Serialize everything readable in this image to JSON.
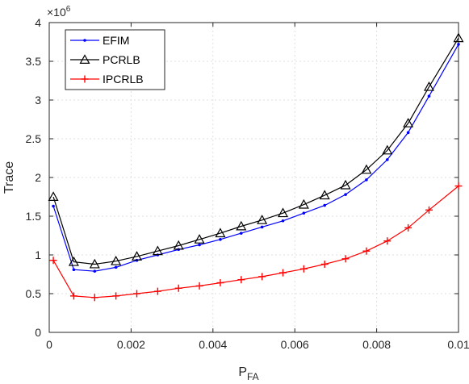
{
  "chart_data": {
    "type": "line",
    "title": "",
    "xlabel": "P",
    "xlabel_sub": "FA",
    "ylabel": "Trace",
    "y_multiplier_base": "×10",
    "y_multiplier_exp": "6",
    "xlim": [
      0,
      0.01
    ],
    "ylim": [
      0,
      4
    ],
    "x_ticks": [
      0,
      0.002,
      0.004,
      0.006,
      0.008,
      0.01
    ],
    "x_tick_labels": [
      "0",
      "0.002",
      "0.004",
      "0.006",
      "0.008",
      "0.01"
    ],
    "y_ticks": [
      0,
      0.5,
      1,
      1.5,
      2,
      2.5,
      3,
      3.5,
      4
    ],
    "y_tick_labels": [
      "0",
      "0.5",
      "1",
      "1.5",
      "2",
      "2.5",
      "3",
      "3.5",
      "4"
    ],
    "grid": true,
    "legend_position": "top-left",
    "x": [
      0.0001,
      0.0006,
      0.00111,
      0.00163,
      0.00214,
      0.00265,
      0.00316,
      0.00367,
      0.00418,
      0.00469,
      0.0052,
      0.00571,
      0.00622,
      0.00673,
      0.00724,
      0.00775,
      0.00826,
      0.00877,
      0.00928,
      0.01
    ],
    "series": [
      {
        "name": "EFIM",
        "color": "#0000ff",
        "marker": "dot",
        "values": [
          1.63,
          0.81,
          0.79,
          0.84,
          0.93,
          1.0,
          1.07,
          1.13,
          1.2,
          1.28,
          1.36,
          1.44,
          1.54,
          1.64,
          1.78,
          1.97,
          2.23,
          2.58,
          3.05,
          3.72
        ]
      },
      {
        "name": "PCRLB",
        "color": "#000000",
        "marker": "triangle",
        "values": [
          1.75,
          0.91,
          0.88,
          0.92,
          0.98,
          1.05,
          1.12,
          1.2,
          1.28,
          1.37,
          1.45,
          1.54,
          1.65,
          1.77,
          1.9,
          2.1,
          2.35,
          2.7,
          3.17,
          3.8
        ]
      },
      {
        "name": "IPCRLB",
        "color": "#ff0000",
        "marker": "plus",
        "values": [
          0.93,
          0.47,
          0.45,
          0.47,
          0.5,
          0.53,
          0.57,
          0.6,
          0.64,
          0.68,
          0.72,
          0.77,
          0.82,
          0.88,
          0.95,
          1.05,
          1.18,
          1.35,
          1.58,
          1.89
        ]
      }
    ]
  }
}
